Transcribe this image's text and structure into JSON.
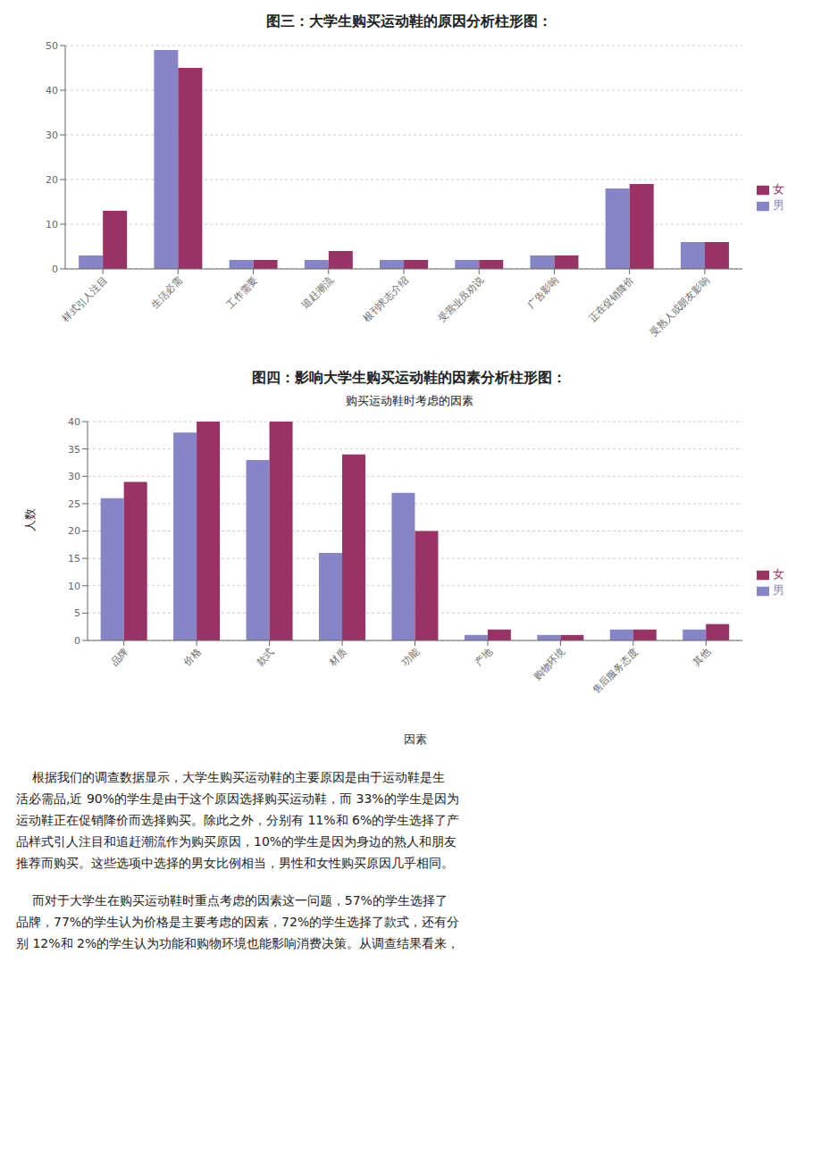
{
  "chart_data": [
    {
      "type": "bar",
      "title": "图三：大学生购买运动鞋的原因分析柱形图：",
      "categories": [
        "样式引人注目",
        "生活必需",
        "工作需要",
        "追赶潮流",
        "根刊求志介绍",
        "受营业员劝说",
        "广告影响",
        "正在促销降价",
        "受熟人或朋友影响"
      ],
      "series": [
        {
          "name": "男",
          "color": "#8585C8",
          "values": [
            3,
            49,
            2,
            2,
            2,
            2,
            3,
            18,
            6
          ]
        },
        {
          "name": "女",
          "color": "#993366",
          "values": [
            13,
            45,
            2,
            4,
            2,
            2,
            3,
            19,
            6
          ]
        }
      ],
      "ylim": [
        0,
        50
      ],
      "yticks": [
        0,
        10,
        20,
        30,
        40,
        50
      ],
      "grid": true,
      "legend": "right"
    },
    {
      "type": "bar",
      "title": "图四：影响大学生购买运动鞋的因素分析柱形图：",
      "subtitle": "购买运动鞋时考虑的因素",
      "xlabel": "因素",
      "ylabel": "人数",
      "categories": [
        "品牌",
        "价格",
        "款式",
        "材质",
        "功能",
        "产地",
        "购物环境",
        "售后服务态度",
        "其他"
      ],
      "series": [
        {
          "name": "男",
          "color": "#8585C8",
          "values": [
            26,
            38,
            33,
            16,
            27,
            1,
            1,
            2,
            2
          ]
        },
        {
          "name": "女",
          "color": "#993366",
          "values": [
            29,
            40,
            40,
            34,
            20,
            2,
            1,
            2,
            3
          ]
        }
      ],
      "ylim": [
        0,
        40
      ],
      "yticks": [
        0,
        5,
        10,
        15,
        20,
        25,
        30,
        35,
        40
      ],
      "grid": true,
      "legend": "right"
    }
  ],
  "annotations": [
    [
      "    根据我们的调查数据显示，大学生购买运动鞋的主要原因是由于运动鞋是生",
      "活必需品,近 90%的学生是由于这个原因选择购买运动鞋，而 33%的学生是因为",
      "运动鞋正在促销降价而选择购买。除此之外，分别有 11%和 6%的学生选择了产",
      "品样式引人注目和追赶潮流作为购买原因，10%的学生是因为身边的熟人和朋友",
      "推荐而购买。这些选项中选择的男女比例相当，男性和女性购买原因几乎相同。"
    ],
    [
      "    而对于大学生在购买运动鞋时重点考虑的因素这一问题，57%的学生选择了",
      "品牌，77%的学生认为价格是主要考虑的因素，72%的学生选择了款式，还有分",
      "别 12%和 2%的学生认为功能和购物环境也能影响消费决策。从调查结果看来，"
    ]
  ]
}
